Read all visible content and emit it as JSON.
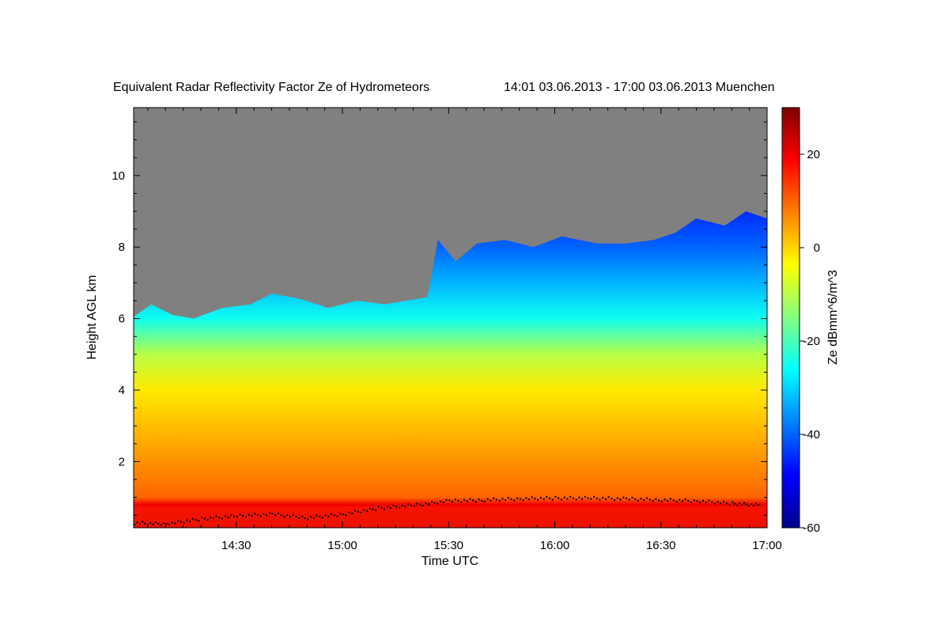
{
  "chart_data": {
    "type": "heatmap",
    "title": "Equivalent Radar Reflectivity Factor Ze of Hydrometeors",
    "period": "14:01 03.06.2013 - 17:00 03.06.2013 Muenchen",
    "xlabel": "Time UTC",
    "ylabel": "Height AGL km",
    "colorbar_label": "Ze dBmm^6/m^3",
    "x_range_min": [
      841,
      1020
    ],
    "y_range_km": [
      0.15,
      11.9
    ],
    "colorbar_range_dbz": [
      -60,
      30
    ],
    "x_ticks": [
      {
        "min": 870,
        "label": "14:30"
      },
      {
        "min": 900,
        "label": "15:00"
      },
      {
        "min": 930,
        "label": "15:30"
      },
      {
        "min": 960,
        "label": "16:00"
      },
      {
        "min": 990,
        "label": "16:30"
      },
      {
        "min": 1020,
        "label": "17:00"
      }
    ],
    "y_ticks": [
      {
        "value": 2,
        "label": "2"
      },
      {
        "value": 4,
        "label": "4"
      },
      {
        "value": 6,
        "label": "6"
      },
      {
        "value": 8,
        "label": "8"
      },
      {
        "value": 10,
        "label": "10"
      }
    ],
    "colorbar_ticks": [
      {
        "value": 20,
        "label": "20"
      },
      {
        "value": 0,
        "label": "0"
      },
      {
        "value": -20,
        "label": "-20"
      },
      {
        "value": -40,
        "label": "-40"
      },
      {
        "value": -60,
        "label": "-60"
      }
    ],
    "cloud_top_km": [
      {
        "min": 841,
        "h": 6.05
      },
      {
        "min": 846,
        "h": 6.4
      },
      {
        "min": 852,
        "h": 6.1
      },
      {
        "min": 858,
        "h": 6.0
      },
      {
        "min": 866,
        "h": 6.3
      },
      {
        "min": 874,
        "h": 6.4
      },
      {
        "min": 880,
        "h": 6.7
      },
      {
        "min": 888,
        "h": 6.55
      },
      {
        "min": 896,
        "h": 6.3
      },
      {
        "min": 904,
        "h": 6.5
      },
      {
        "min": 912,
        "h": 6.4
      },
      {
        "min": 918,
        "h": 6.5
      },
      {
        "min": 924,
        "h": 6.6
      },
      {
        "min": 927,
        "h": 8.2
      },
      {
        "min": 932,
        "h": 7.6
      },
      {
        "min": 938,
        "h": 8.1
      },
      {
        "min": 946,
        "h": 8.2
      },
      {
        "min": 954,
        "h": 8.0
      },
      {
        "min": 962,
        "h": 8.3
      },
      {
        "min": 972,
        "h": 8.1
      },
      {
        "min": 980,
        "h": 8.1
      },
      {
        "min": 988,
        "h": 8.2
      },
      {
        "min": 994,
        "h": 8.4
      },
      {
        "min": 1000,
        "h": 8.8
      },
      {
        "min": 1008,
        "h": 8.6
      },
      {
        "min": 1014,
        "h": 9.0
      },
      {
        "min": 1020,
        "h": 8.8
      }
    ],
    "field_dbz_vs_height": [
      {
        "h": 0.3,
        "ze": 22
      },
      {
        "h": 0.8,
        "ze": 20
      },
      {
        "h": 1.0,
        "ze": 10
      },
      {
        "h": 2.0,
        "ze": 6
      },
      {
        "h": 3.0,
        "ze": 2
      },
      {
        "h": 4.0,
        "ze": -2
      },
      {
        "h": 5.0,
        "ze": -10
      },
      {
        "h": 6.0,
        "ze": -25
      },
      {
        "h": 7.0,
        "ze": -33
      },
      {
        "h": 8.0,
        "ze": -40
      },
      {
        "h": 9.0,
        "ze": -45
      }
    ],
    "cloud_base_markers": {
      "color": "#000000",
      "points": [
        {
          "min": 841,
          "h": 0.3
        },
        {
          "min": 850,
          "h": 0.28
        },
        {
          "min": 860,
          "h": 0.42
        },
        {
          "min": 870,
          "h": 0.5
        },
        {
          "min": 880,
          "h": 0.55
        },
        {
          "min": 890,
          "h": 0.45
        },
        {
          "min": 900,
          "h": 0.55
        },
        {
          "min": 910,
          "h": 0.72
        },
        {
          "min": 920,
          "h": 0.8
        },
        {
          "min": 930,
          "h": 0.92
        },
        {
          "min": 940,
          "h": 0.95
        },
        {
          "min": 950,
          "h": 0.98
        },
        {
          "min": 960,
          "h": 1.0
        },
        {
          "min": 970,
          "h": 1.0
        },
        {
          "min": 980,
          "h": 0.98
        },
        {
          "min": 990,
          "h": 0.95
        },
        {
          "min": 1000,
          "h": 0.92
        },
        {
          "min": 1010,
          "h": 0.85
        },
        {
          "min": 1018,
          "h": 0.8
        }
      ]
    },
    "colors": {
      "missing": "#808080",
      "colormap": [
        "#00008b",
        "#0000ff",
        "#0080ff",
        "#00ffff",
        "#80ff80",
        "#ffff00",
        "#ff8000",
        "#ff0000",
        "#800000"
      ]
    }
  }
}
